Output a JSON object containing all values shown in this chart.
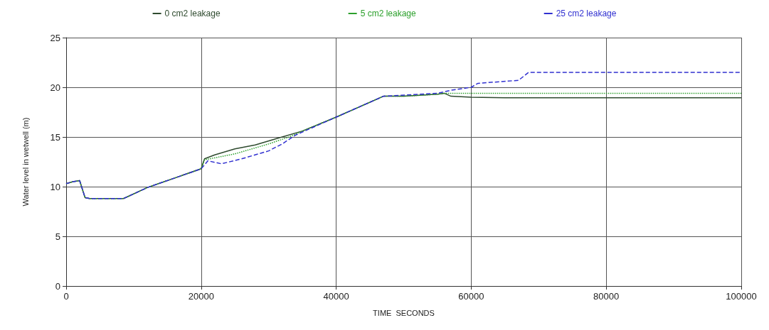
{
  "chart_data": {
    "type": "line",
    "xlabel": "TIME  SECONDS",
    "ylabel": "Water level in wetwell (m)",
    "xlim": [
      0,
      100000
    ],
    "xticks": [
      0,
      20000,
      40000,
      60000,
      80000,
      100000
    ],
    "ylim": [
      0,
      25
    ],
    "yticks": [
      0,
      5,
      10,
      15,
      20,
      25
    ],
    "grid": true,
    "legend": "top",
    "marker": "none",
    "series": [
      {
        "name": "0 cm2 leakage",
        "color": "#2e4a2e",
        "line_style": "solid",
        "x": [
          0,
          1000,
          2000,
          2800,
          3500,
          8500,
          12000,
          20000,
          20500,
          22000,
          25000,
          28000,
          31000,
          35000,
          40000,
          47000,
          50000,
          55000,
          56000,
          57000,
          60000,
          65000,
          100000
        ],
        "values": [
          10.3,
          10.5,
          10.6,
          8.9,
          8.8,
          8.8,
          9.9,
          11.8,
          12.8,
          13.2,
          13.8,
          14.2,
          14.8,
          15.6,
          17.0,
          19.1,
          19.1,
          19.3,
          19.4,
          19.1,
          19.0,
          18.95,
          18.95
        ]
      },
      {
        "name": "5 cm2 leakage",
        "color": "#2ca02c",
        "line_style": "dotted",
        "x": [
          0,
          1000,
          2000,
          2800,
          3500,
          8500,
          12000,
          20000,
          20500,
          22000,
          25000,
          30000,
          33000,
          35000,
          40000,
          47000,
          50000,
          55000,
          56000,
          60000,
          100000
        ],
        "values": [
          10.3,
          10.5,
          10.6,
          8.9,
          8.8,
          8.8,
          9.9,
          11.8,
          12.7,
          12.9,
          13.3,
          14.3,
          15.0,
          15.6,
          17.0,
          19.1,
          19.1,
          19.3,
          19.4,
          19.4,
          19.4
        ]
      },
      {
        "name": "25 cm2 leakage",
        "color": "#3030d0",
        "line_style": "dashed",
        "x": [
          0,
          1000,
          2000,
          2800,
          3500,
          8500,
          12000,
          20000,
          21000,
          23000,
          26000,
          30000,
          32000,
          34000,
          40000,
          47000,
          55000,
          57000,
          60000,
          61000,
          67000,
          68500,
          100000
        ],
        "values": [
          10.3,
          10.5,
          10.6,
          8.9,
          8.8,
          8.8,
          9.9,
          11.8,
          12.6,
          12.3,
          12.8,
          13.6,
          14.3,
          15.2,
          17.0,
          19.1,
          19.4,
          19.7,
          20.0,
          20.4,
          20.7,
          21.5,
          21.5
        ]
      }
    ]
  }
}
